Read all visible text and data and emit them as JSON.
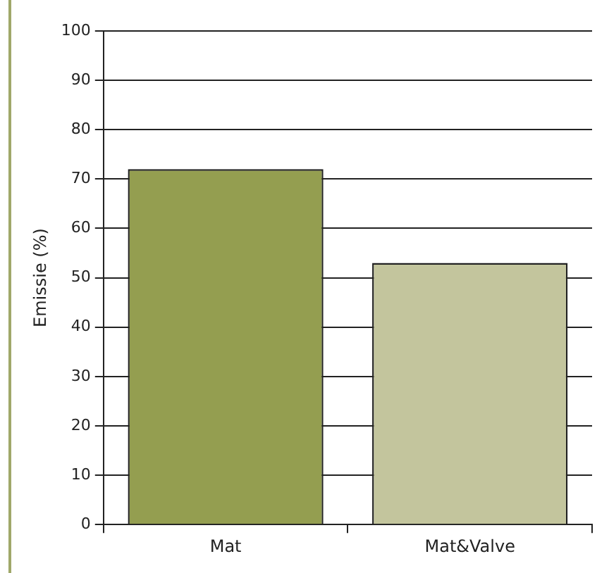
{
  "chart_data": {
    "type": "bar",
    "ylabel": "Emissie (%)",
    "categories": [
      "Mat",
      "Mat&Valve"
    ],
    "colors": [
      "#949e50",
      "#c3c59d"
    ],
    "values": [
      72,
      53
    ],
    "ylim": [
      0,
      100
    ],
    "yticks": [
      0,
      10,
      20,
      30,
      40,
      50,
      60,
      70,
      80,
      90,
      100
    ],
    "grid": "y",
    "legend": false
  }
}
